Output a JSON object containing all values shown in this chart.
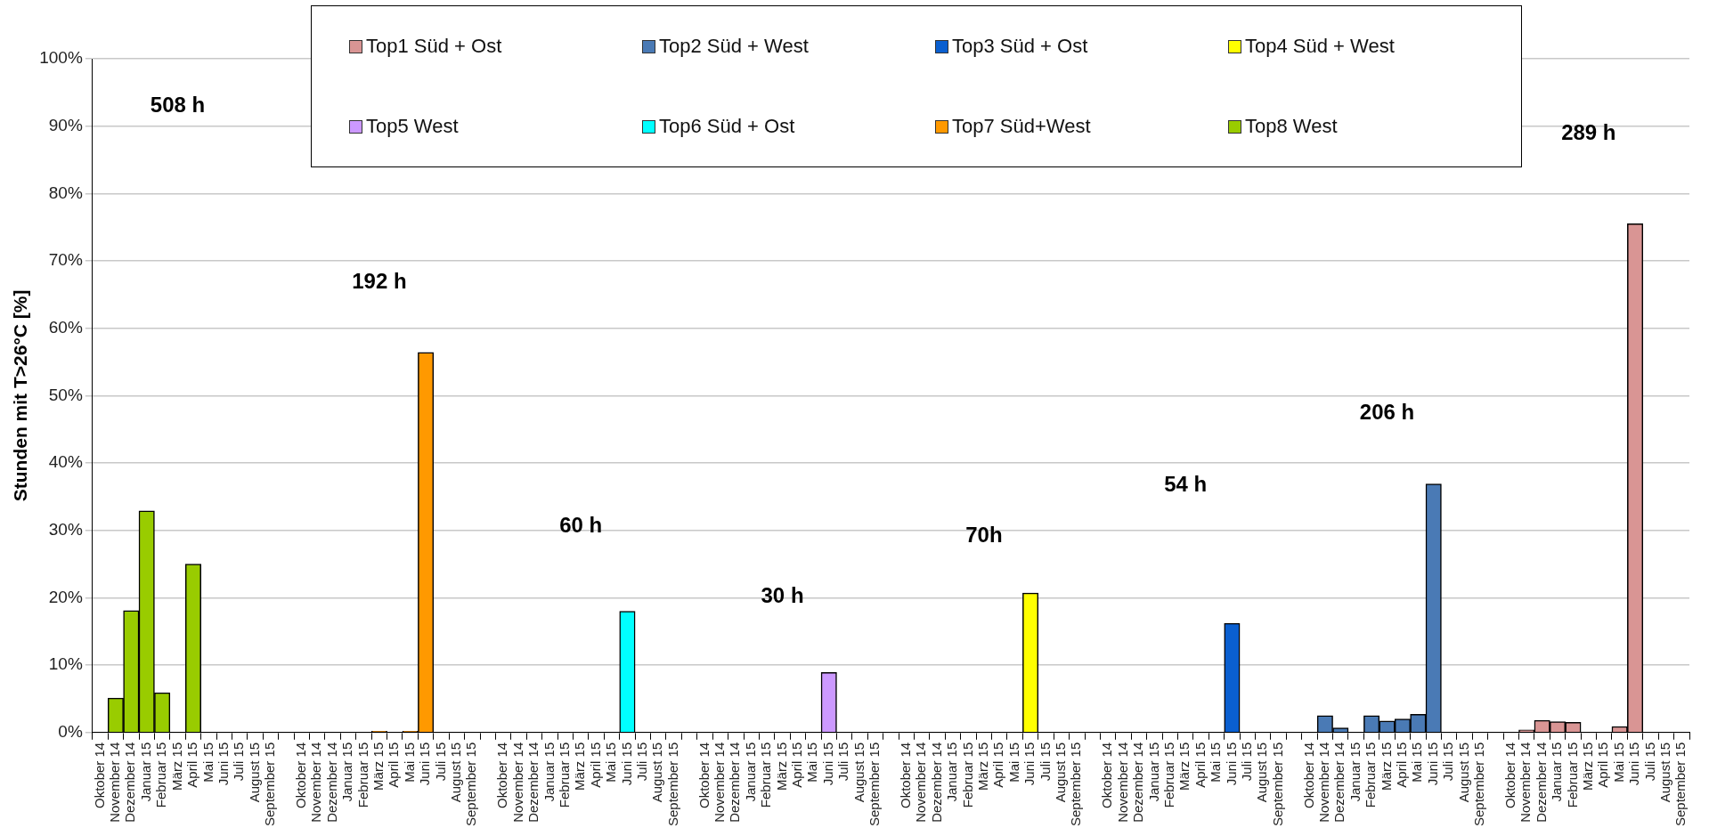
{
  "chart_data": {
    "type": "bar",
    "ylabel": "Stunden mit T>26°C [%]",
    "ylim": [
      0,
      100
    ],
    "yticks": [
      {
        "value": 0,
        "label": "0%"
      },
      {
        "value": 10,
        "label": "10%"
      },
      {
        "value": 20,
        "label": "20%"
      },
      {
        "value": 30,
        "label": "30%"
      },
      {
        "value": 40,
        "label": "40%"
      },
      {
        "value": 50,
        "label": "50%"
      },
      {
        "value": 60,
        "label": "60%"
      },
      {
        "value": 70,
        "label": "70%"
      },
      {
        "value": 80,
        "label": "80%"
      },
      {
        "value": 90,
        "label": "90%"
      },
      {
        "value": 100,
        "label": "100%"
      }
    ],
    "grid": "y",
    "legend": "top",
    "annotations": [
      "508 h",
      "192 h",
      "60 h",
      "30 h",
      "70h",
      "54 h",
      "206 h",
      "289 h"
    ],
    "categories": [
      "Oktober 14",
      "November 14",
      "Dezember 14",
      "Januar 15",
      "Februar 15",
      "März 15",
      "April 15",
      "Mai 15",
      "Juni 15",
      "Juli 15",
      "August 15",
      "September 15",
      null,
      "Oktober 14",
      "November 14",
      "Dezember 14",
      "Januar 15",
      "Februar 15",
      "März 15",
      "April 15",
      "Mai 15",
      "Juni 15",
      "Juli 15",
      "August 15",
      "September 15",
      null,
      "Oktober 14",
      "November 14",
      "Dezember 14",
      "Januar 15",
      "Februar 15",
      "März 15",
      "April 15",
      "Mai 15",
      "Juni 15",
      "Juli 15",
      "August 15",
      "September 15",
      null,
      "Oktober 14",
      "November 14",
      "Dezember 14",
      "Januar 15",
      "Februar 15",
      "März 15",
      "April 15",
      "Mai 15",
      "Juni 15",
      "Juli 15",
      "August 15",
      "September 15",
      null,
      "Oktober 14",
      "November 14",
      "Dezember 14",
      "Januar 15",
      "Februar 15",
      "März 15",
      "April 15",
      "Mai 15",
      "Juni 15",
      "Juli 15",
      "August 15",
      "September 15",
      null,
      "Oktober 14",
      "November 14",
      "Dezember 14",
      "Januar 15",
      "Februar 15",
      "März 15",
      "April 15",
      "Mai 15",
      "Juni 15",
      "Juli 15",
      "August 15",
      "September 15",
      null,
      "Oktober 14",
      "November 14",
      "Dezember 14",
      "Januar 15",
      "Februar 15",
      "März 15",
      "April 15",
      "Mai 15",
      "Juni 15",
      "Juli 15",
      "August 15",
      "September 15",
      null,
      "Oktober 14",
      "November 14",
      "Dezember 14",
      "Januar 15",
      "Februar 15",
      "März 15",
      "April 15",
      "Mai 15",
      "Juni 15",
      "Juli 15",
      "August 15",
      "September 15"
    ],
    "series": [
      {
        "name": "Top1 Süd + Ost",
        "color": "#d99594",
        "values": [
          null,
          null,
          null,
          null,
          null,
          null,
          null,
          null,
          null,
          null,
          null,
          null,
          null,
          null,
          null,
          null,
          null,
          null,
          null,
          null,
          null,
          null,
          null,
          null,
          null,
          null,
          null,
          null,
          null,
          null,
          null,
          null,
          null,
          null,
          null,
          null,
          null,
          null,
          null,
          null,
          null,
          null,
          null,
          null,
          null,
          null,
          null,
          null,
          null,
          null,
          null,
          null,
          null,
          null,
          null,
          null,
          null,
          null,
          null,
          null,
          null,
          null,
          null,
          null,
          null,
          null,
          null,
          null,
          null,
          null,
          null,
          null,
          null,
          null,
          null,
          null,
          null,
          null,
          null,
          null,
          null,
          null,
          null,
          null,
          null,
          null,
          null,
          null,
          null,
          null,
          null,
          0,
          0.4,
          1.8,
          1.6,
          1.5,
          0,
          0,
          0.9,
          75.5,
          0,
          0,
          0
        ]
      },
      {
        "name": "Top2 Süd + West",
        "color": "#4a7ab5",
        "values": [
          null,
          null,
          null,
          null,
          null,
          null,
          null,
          null,
          null,
          null,
          null,
          null,
          null,
          null,
          null,
          null,
          null,
          null,
          null,
          null,
          null,
          null,
          null,
          null,
          null,
          null,
          null,
          null,
          null,
          null,
          null,
          null,
          null,
          null,
          null,
          null,
          null,
          null,
          null,
          null,
          null,
          null,
          null,
          null,
          null,
          null,
          null,
          null,
          null,
          null,
          null,
          null,
          null,
          null,
          null,
          null,
          null,
          null,
          null,
          null,
          null,
          null,
          null,
          null,
          null,
          null,
          null,
          null,
          null,
          null,
          null,
          null,
          null,
          null,
          null,
          null,
          null,
          null,
          0,
          2.5,
          0.7,
          0,
          2.5,
          1.7,
          2.0,
          2.7,
          36.9,
          0,
          0,
          0,
          null,
          null,
          null,
          null,
          null,
          null,
          null,
          null,
          null,
          null,
          null,
          null,
          null
        ]
      },
      {
        "name": "Top3 Süd + Ost",
        "color": "#0a5fd0",
        "values": [
          null,
          null,
          null,
          null,
          null,
          null,
          null,
          null,
          null,
          null,
          null,
          null,
          null,
          null,
          null,
          null,
          null,
          null,
          null,
          null,
          null,
          null,
          null,
          null,
          null,
          null,
          null,
          null,
          null,
          null,
          null,
          null,
          null,
          null,
          null,
          null,
          null,
          null,
          null,
          null,
          null,
          null,
          null,
          null,
          null,
          null,
          null,
          null,
          null,
          null,
          null,
          null,
          null,
          null,
          null,
          null,
          null,
          null,
          null,
          null,
          null,
          null,
          null,
          null,
          null,
          0,
          0,
          0,
          0,
          0,
          0,
          0,
          0,
          16.2,
          0,
          0,
          0,
          null,
          null,
          null,
          null,
          null,
          null,
          null,
          null,
          null,
          null,
          null,
          null,
          null,
          null,
          null,
          null,
          null,
          null,
          null,
          null,
          null,
          null,
          null,
          null,
          null,
          null
        ]
      },
      {
        "name": "Top4 Süd + West",
        "color": "#ffff00",
        "values": [
          null,
          null,
          null,
          null,
          null,
          null,
          null,
          null,
          null,
          null,
          null,
          null,
          null,
          null,
          null,
          null,
          null,
          null,
          null,
          null,
          null,
          null,
          null,
          null,
          null,
          null,
          null,
          null,
          null,
          null,
          null,
          null,
          null,
          null,
          null,
          null,
          null,
          null,
          null,
          null,
          null,
          null,
          null,
          null,
          null,
          null,
          null,
          null,
          null,
          null,
          null,
          null,
          0,
          0,
          0,
          0,
          0,
          0,
          0,
          0,
          20.7,
          0,
          0,
          0,
          null,
          null,
          null,
          null,
          null,
          null,
          null,
          null,
          null,
          null,
          null,
          null,
          null,
          null,
          null,
          null,
          null,
          null,
          null,
          null,
          null,
          null,
          null,
          null,
          null,
          null,
          null,
          null,
          null,
          null,
          null,
          null,
          null,
          null,
          null,
          null,
          null,
          null,
          null
        ]
      },
      {
        "name": "Top5 West",
        "color": "#cc99ff",
        "values": [
          null,
          null,
          null,
          null,
          null,
          null,
          null,
          null,
          null,
          null,
          null,
          null,
          null,
          null,
          null,
          null,
          null,
          null,
          null,
          null,
          null,
          null,
          null,
          null,
          null,
          null,
          null,
          null,
          null,
          null,
          null,
          null,
          null,
          null,
          null,
          null,
          null,
          null,
          null,
          0,
          0,
          0,
          0,
          0,
          0,
          0,
          0,
          8.9,
          0,
          0,
          0,
          null,
          null,
          null,
          null,
          null,
          null,
          null,
          null,
          null,
          null,
          null,
          null,
          null,
          null,
          null,
          null,
          null,
          null,
          null,
          null,
          null,
          null,
          null,
          null,
          null,
          null,
          null,
          null,
          null,
          null,
          null,
          null,
          null,
          null,
          null,
          null,
          null,
          null,
          null,
          null,
          null,
          null,
          null,
          null,
          null,
          null,
          null,
          null,
          null,
          null,
          null,
          null
        ]
      },
      {
        "name": "Top6 Süd + Ost",
        "color": "#00ffff",
        "values": [
          null,
          null,
          null,
          null,
          null,
          null,
          null,
          null,
          null,
          null,
          null,
          null,
          null,
          null,
          null,
          null,
          null,
          null,
          null,
          null,
          null,
          null,
          null,
          null,
          null,
          null,
          0,
          0,
          0,
          0,
          0,
          0,
          0,
          0,
          18.0,
          0,
          0,
          0,
          null,
          null,
          null,
          null,
          null,
          null,
          null,
          null,
          null,
          null,
          null,
          null,
          null,
          null,
          null,
          null,
          null,
          null,
          null,
          null,
          null,
          null,
          null,
          null,
          null,
          null,
          null,
          null,
          null,
          null,
          null,
          null,
          null,
          null,
          null,
          null,
          null,
          null,
          null,
          null,
          null,
          null,
          null,
          null,
          null,
          null,
          null,
          null,
          null,
          null,
          null,
          null,
          null,
          null,
          null,
          null,
          null,
          null,
          null,
          null,
          null,
          null,
          null,
          null,
          null
        ]
      },
      {
        "name": "Top7 Süd+West",
        "color": "#ff9900",
        "values": [
          null,
          null,
          null,
          null,
          null,
          null,
          null,
          null,
          null,
          null,
          null,
          null,
          null,
          0,
          0,
          0,
          0,
          0,
          0.2,
          0,
          0.2,
          56.4,
          0,
          0,
          0,
          null,
          null,
          null,
          null,
          null,
          null,
          null,
          null,
          null,
          null,
          null,
          null,
          null,
          null,
          null,
          null,
          null,
          null,
          null,
          null,
          null,
          null,
          null,
          null,
          null,
          null,
          null,
          null,
          null,
          null,
          null,
          null,
          null,
          null,
          null,
          null,
          null,
          null,
          null,
          null,
          null,
          null,
          null,
          null,
          null,
          null,
          null,
          null,
          null,
          null,
          null,
          null,
          null,
          null,
          null,
          null,
          null,
          null,
          null,
          null,
          null,
          null,
          null,
          null,
          null,
          null,
          null,
          null,
          null,
          null,
          null,
          null,
          null,
          null,
          null,
          null,
          null,
          null
        ]
      },
      {
        "name": "Top8 West",
        "color": "#99cc00",
        "values": [
          0,
          5.1,
          18.1,
          32.9,
          5.9,
          0,
          25.0,
          0,
          0,
          0,
          0,
          0,
          null,
          null,
          null,
          null,
          null,
          null,
          null,
          null,
          null,
          null,
          null,
          null,
          null,
          null,
          null,
          null,
          null,
          null,
          null,
          null,
          null,
          null,
          null,
          null,
          null,
          null,
          null,
          null,
          null,
          null,
          null,
          null,
          null,
          null,
          null,
          null,
          null,
          null,
          null,
          null,
          null,
          null,
          null,
          null,
          null,
          null,
          null,
          null,
          null,
          null,
          null,
          null,
          null,
          null,
          null,
          null,
          null,
          null,
          null,
          null,
          null,
          null,
          null,
          null,
          null,
          null,
          null,
          null,
          null,
          null,
          null,
          null,
          null,
          null,
          null,
          null,
          null,
          null,
          null,
          null,
          null,
          null,
          null,
          null,
          null,
          null,
          null,
          null,
          null,
          null,
          null
        ]
      }
    ]
  }
}
